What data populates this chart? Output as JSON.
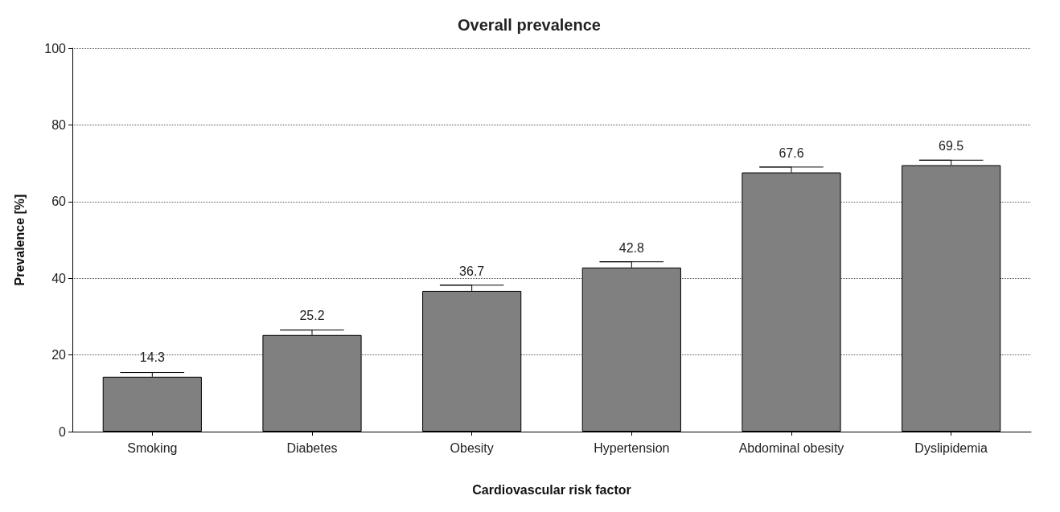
{
  "chart_data": {
    "type": "bar",
    "title": "Overall prevalence",
    "xlabel": "Cardiovascular risk factor",
    "ylabel": "Prevalence [%]",
    "categories": [
      "Smoking",
      "Diabetes",
      "Obesity",
      "Hypertension",
      "Abdominal obesity",
      "Dyslipidemia"
    ],
    "values": [
      14.3,
      25.2,
      36.7,
      42.8,
      67.6,
      69.5
    ],
    "errors": [
      [
        14.3,
        15.4
      ],
      [
        25.2,
        26.5
      ],
      [
        36.7,
        38.2
      ],
      [
        42.8,
        44.3
      ],
      [
        67.6,
        69.0
      ],
      [
        69.5,
        70.8
      ]
    ],
    "color": "#808080",
    "data_labels": true,
    "ylim": [
      0,
      100
    ],
    "yticks": [
      0,
      20,
      40,
      60,
      80,
      100
    ],
    "grid": "y"
  }
}
